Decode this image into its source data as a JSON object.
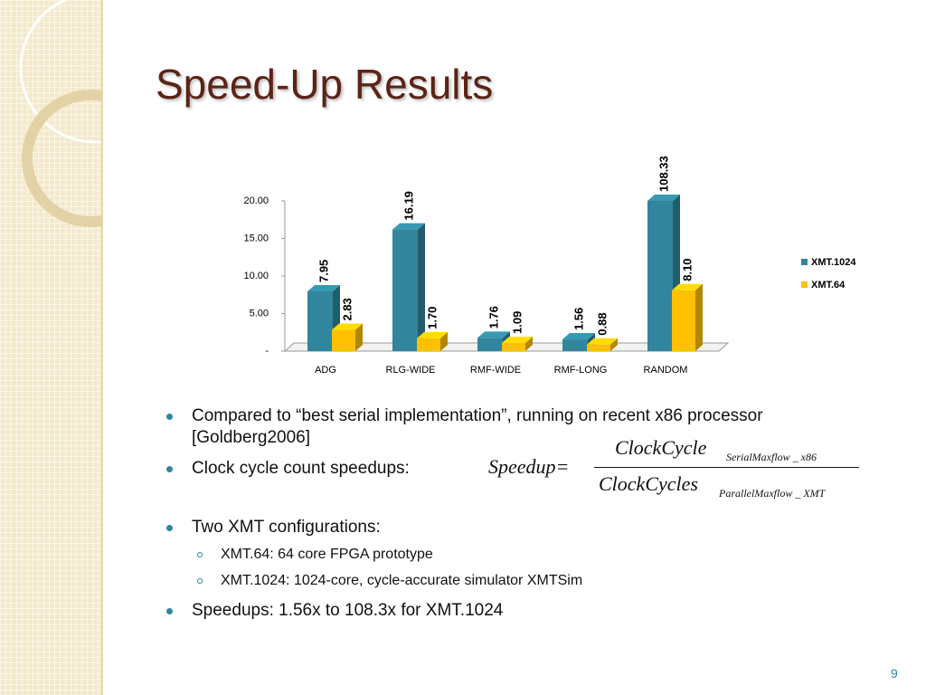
{
  "title": "Speed-Up Results",
  "chart_data": {
    "type": "bar",
    "categories": [
      "ADG",
      "RLG-WIDE",
      "RMF-WIDE",
      "RMF-LONG",
      "RANDOM"
    ],
    "series": [
      {
        "name": "XMT.1024",
        "color": "#31859c",
        "values": [
          7.95,
          16.19,
          1.76,
          1.56,
          108.33
        ],
        "value_labels": [
          "7.95",
          "16.19",
          "1.76",
          "1.56",
          "108.33"
        ]
      },
      {
        "name": "XMT.64",
        "color": "#ffc000",
        "values": [
          2.83,
          1.7,
          1.09,
          0.88,
          8.1
        ],
        "value_labels": [
          "2.83",
          "1.70",
          "1.09",
          "0.88",
          "8.10"
        ]
      }
    ],
    "ylim": [
      0,
      20
    ],
    "yticks": [
      {
        "value": 0,
        "label": "-"
      },
      {
        "value": 5,
        "label": "5.00"
      },
      {
        "value": 10,
        "label": "10.00"
      },
      {
        "value": 15,
        "label": "15.00"
      },
      {
        "value": 20,
        "label": "20.00"
      }
    ],
    "legend": "right"
  },
  "bullets": [
    {
      "text": "Compared to “best serial implementation”, running on recent x86 processor [Goldberg2006]"
    },
    {
      "text": "Clock cycle count speedups:"
    },
    {
      "text": "Two XMT configurations:",
      "sub": [
        "XMT.64: 64 core FPGA prototype",
        "XMT.1024: 1024-core, cycle-accurate simulator XMTSim"
      ]
    },
    {
      "text": "Speedups: 1.56x to 108.3x for XMT.1024"
    }
  ],
  "formula": {
    "lhs": "Speedup=",
    "num": "ClockCycle",
    "num_sub": "SerialMaxflow _ x86",
    "den": "ClockCycles",
    "den_sub": "ParallelMaxflow _ XMT"
  },
  "page_number": "9"
}
